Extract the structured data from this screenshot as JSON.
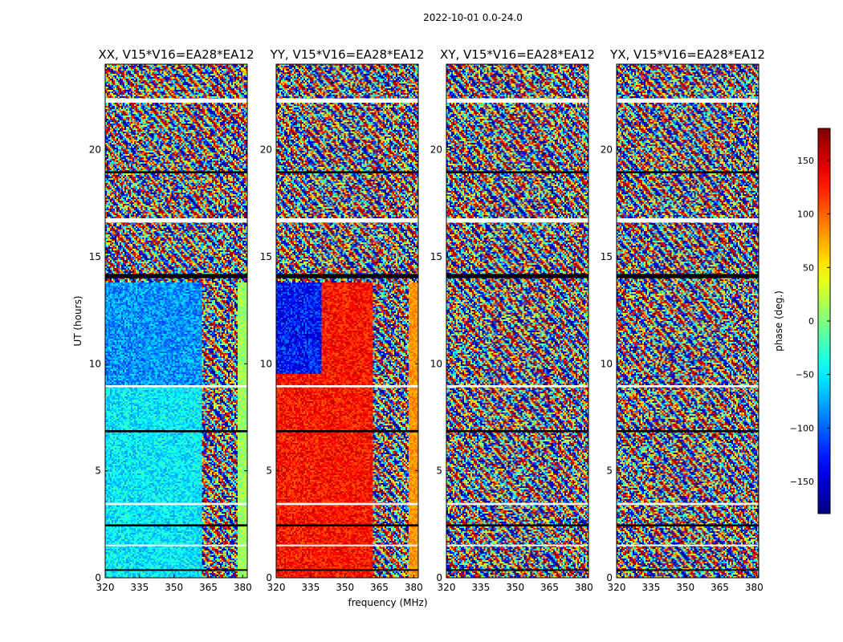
{
  "chart_data": {
    "type": "heatmap",
    "suptitle": "2022-10-01 0.0-24.0",
    "xlabel": "frequency (MHz)",
    "ylabel": "UT (hours)",
    "xlim": [
      320,
      382
    ],
    "ylim": [
      0,
      24
    ],
    "xticks": [
      320,
      335,
      350,
      365,
      380
    ],
    "yticks": [
      0,
      5,
      10,
      15,
      20
    ],
    "colorbar": {
      "label": "phase (deg.)",
      "colormap": "jet",
      "range": [
        -180,
        180
      ],
      "ticks": [
        150,
        100,
        50,
        0,
        -50,
        -100,
        -150
      ],
      "tick_labels": [
        "150",
        "100",
        "50",
        "0",
        "−50",
        "−100",
        "−150"
      ]
    },
    "panels": [
      {
        "title": "XX, V15*V16=EA28*EA12",
        "pattern": "coherent-cyan"
      },
      {
        "title": "YY, V15*V16=EA28*EA12",
        "pattern": "coherent-red"
      },
      {
        "title": "XY, V15*V16=EA28*EA12",
        "pattern": "noise"
      },
      {
        "title": "YX, V15*V16=EA28*EA12",
        "pattern": "noise"
      }
    ],
    "flagged_time_bands_hours": [
      [
        22.2,
        22.4
      ],
      [
        18.9,
        19.0
      ],
      [
        16.6,
        16.8
      ],
      [
        14.0,
        14.2
      ],
      [
        8.9,
        9.0
      ],
      [
        6.8,
        6.9
      ],
      [
        3.4,
        3.5
      ],
      [
        2.4,
        2.5
      ],
      [
        1.5,
        1.55
      ],
      [
        0.35,
        0.4
      ]
    ]
  }
}
